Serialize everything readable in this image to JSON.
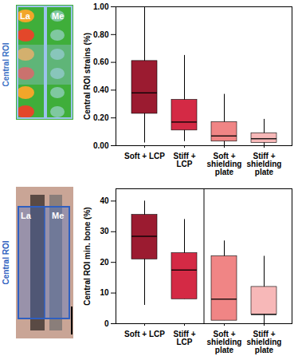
{
  "chart_data": [
    {
      "type": "box",
      "categories": [
        "Soft + LCP",
        "Stiff + LCP",
        "Soft + shielding plate",
        "Stiff + shielding plate"
      ],
      "min": [
        0.02,
        0.03,
        0.0,
        0.0
      ],
      "q1": [
        0.23,
        0.11,
        0.03,
        0.02
      ],
      "median": [
        0.38,
        0.17,
        0.07,
        0.05
      ],
      "q3": [
        0.61,
        0.33,
        0.17,
        0.09
      ],
      "max": [
        1.0,
        0.65,
        0.37,
        0.19
      ],
      "colors": [
        "#9b1b30",
        "#d42a45",
        "#f08585",
        "#f7b8b8"
      ],
      "ylabel": "Central ROI strains (%)",
      "ylim": [
        0,
        1
      ],
      "yticks": [
        {
          "value": 0,
          "label": "0.00"
        },
        {
          "value": 0.2,
          "label": "0.20"
        },
        {
          "value": 0.4,
          "label": "0.40"
        },
        {
          "value": 0.6,
          "label": "0.60"
        },
        {
          "value": 0.8,
          "label": "0.80"
        },
        {
          "value": 1,
          "label": "1.00"
        }
      ],
      "annotations": [
        "La",
        "Me",
        "Central ROI"
      ]
    },
    {
      "type": "box",
      "categories": [
        "Soft + LCP",
        "Stiff + LCP",
        "Soft + shielding plate",
        "Stiff + shielding plate"
      ],
      "min": [
        6,
        8,
        1,
        0
      ],
      "q1": [
        21,
        8,
        1,
        3
      ],
      "median": [
        28.5,
        17.5,
        8,
        3
      ],
      "q3": [
        35.5,
        23,
        22,
        12
      ],
      "max": [
        40,
        34,
        27,
        22
      ],
      "colors": [
        "#9b1b30",
        "#d42a45",
        "#f08585",
        "#f7b8b8"
      ],
      "ylabel": "Central ROI min. bone (%)",
      "ylim": [
        0,
        44
      ],
      "yticks": [
        0,
        10,
        20,
        30,
        40
      ],
      "annotations": [
        "La",
        "Me",
        "Central ROI"
      ]
    }
  ]
}
